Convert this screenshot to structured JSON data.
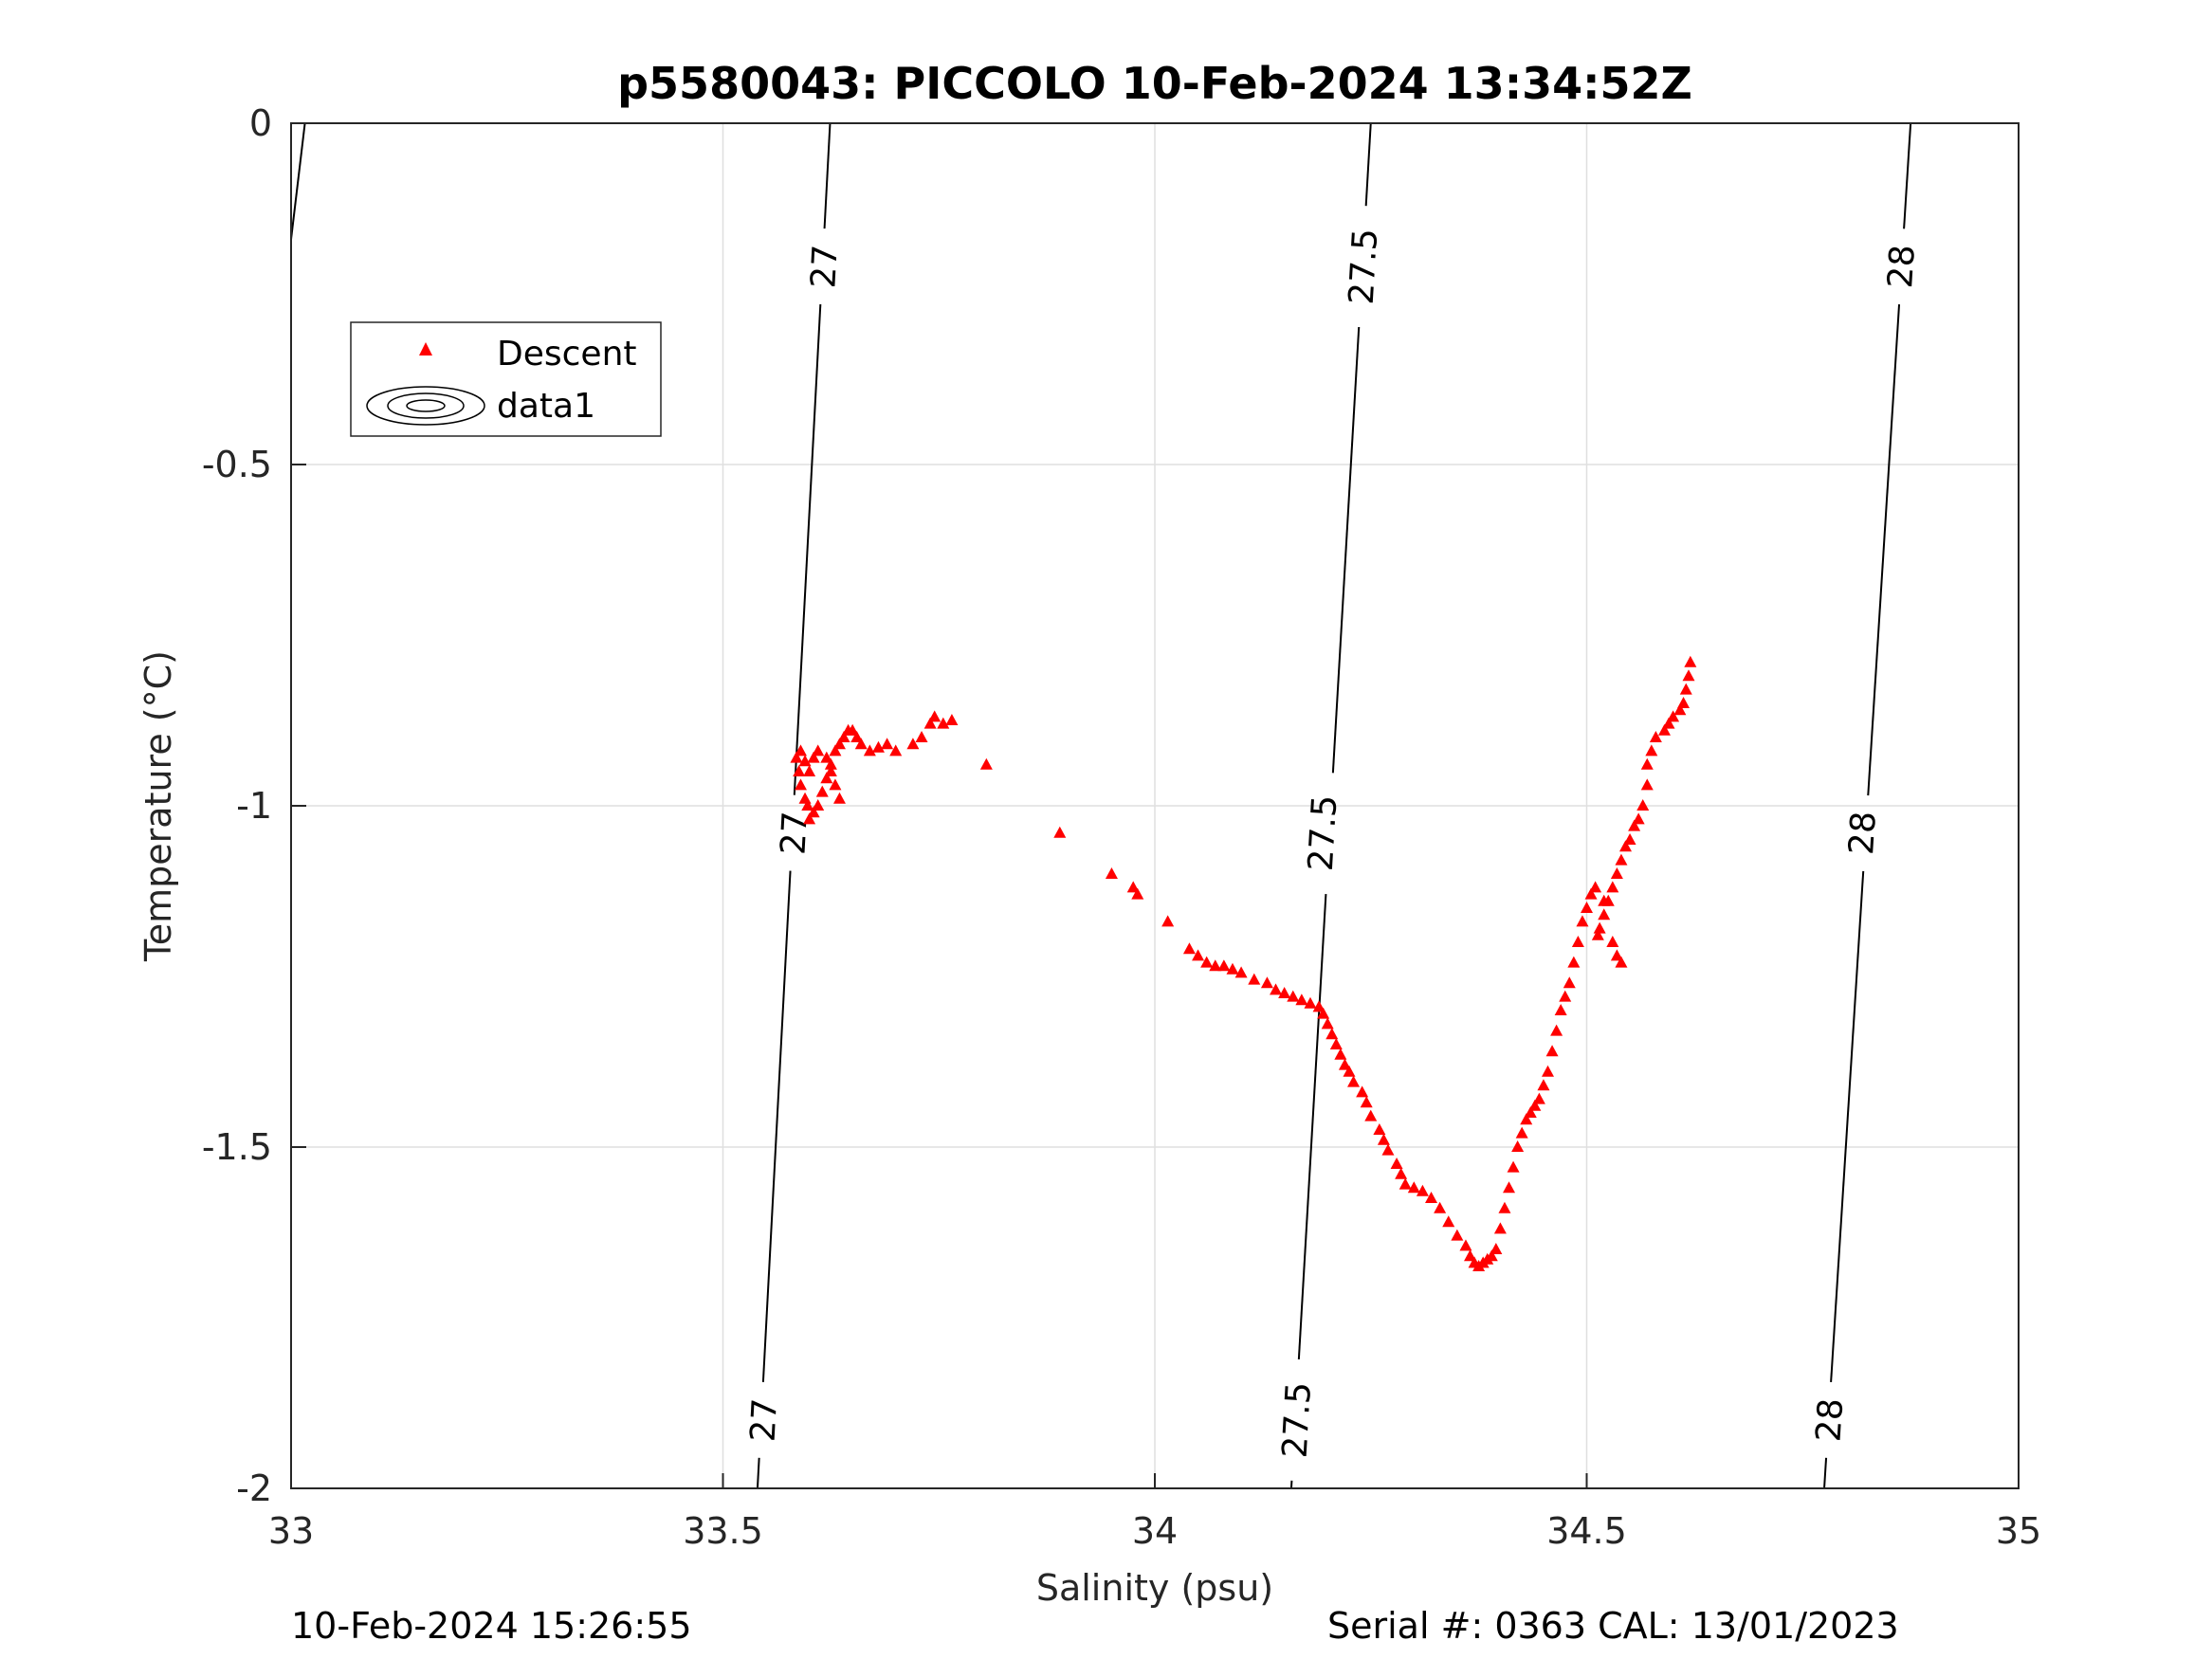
{
  "page": {
    "footer_left": "10-Feb-2024 15:26:55",
    "footer_right": "Serial #: 0363  CAL: 13/01/2023"
  },
  "chart_data": {
    "type": "scatter",
    "title": "p5580043: PICCOLO 10-Feb-2024 13:34:52Z",
    "xlabel": "Salinity (psu)",
    "ylabel": "Temperature (°C)",
    "xlim": [
      33,
      35
    ],
    "ylim": [
      -2,
      0
    ],
    "xticks": [
      33,
      33.5,
      34,
      34.5,
      35
    ],
    "xtick_labels": [
      "33",
      "33.5",
      "34",
      "34.5",
      "35"
    ],
    "yticks": [
      0,
      -0.5,
      -1,
      -1.5,
      -2
    ],
    "ytick_labels": [
      "0",
      "-0.5",
      "-1",
      "-1.5",
      "-2"
    ],
    "grid": true,
    "legend": {
      "placement": "upper-left",
      "entries": [
        {
          "label": "Descent",
          "marker": "triangle",
          "color": "#ff0000"
        },
        {
          "label": "data1",
          "marker": "contour",
          "color": "#000000"
        }
      ]
    },
    "series": [
      {
        "name": "Descent",
        "marker": "triangle",
        "color": "#ff0000",
        "points": [
          [
            34.62,
            -0.79
          ],
          [
            34.618,
            -0.81
          ],
          [
            34.615,
            -0.83
          ],
          [
            34.612,
            -0.85
          ],
          [
            34.608,
            -0.86
          ],
          [
            34.6,
            -0.87
          ],
          [
            34.595,
            -0.88
          ],
          [
            34.59,
            -0.89
          ],
          [
            34.58,
            -0.9
          ],
          [
            34.575,
            -0.92
          ],
          [
            34.57,
            -0.94
          ],
          [
            34.57,
            -0.97
          ],
          [
            34.565,
            -1.0
          ],
          [
            34.56,
            -1.02
          ],
          [
            34.555,
            -1.03
          ],
          [
            34.55,
            -1.05
          ],
          [
            34.545,
            -1.06
          ],
          [
            34.54,
            -1.08
          ],
          [
            34.535,
            -1.1
          ],
          [
            34.53,
            -1.12
          ],
          [
            34.525,
            -1.14
          ],
          [
            34.52,
            -1.16
          ],
          [
            34.515,
            -1.18
          ],
          [
            34.513,
            -1.19
          ],
          [
            34.53,
            -1.2
          ],
          [
            34.535,
            -1.22
          ],
          [
            34.54,
            -1.23
          ],
          [
            34.52,
            -1.14
          ],
          [
            34.51,
            -1.12
          ],
          [
            34.505,
            -1.13
          ],
          [
            34.5,
            -1.15
          ],
          [
            34.495,
            -1.17
          ],
          [
            34.49,
            -1.2
          ],
          [
            34.485,
            -1.23
          ],
          [
            34.48,
            -1.26
          ],
          [
            34.475,
            -1.28
          ],
          [
            34.47,
            -1.3
          ],
          [
            34.465,
            -1.33
          ],
          [
            34.46,
            -1.36
          ],
          [
            34.455,
            -1.39
          ],
          [
            34.45,
            -1.41
          ],
          [
            34.445,
            -1.43
          ],
          [
            34.44,
            -1.44
          ],
          [
            34.435,
            -1.45
          ],
          [
            34.43,
            -1.46
          ],
          [
            34.425,
            -1.48
          ],
          [
            34.42,
            -1.5
          ],
          [
            34.415,
            -1.53
          ],
          [
            34.41,
            -1.56
          ],
          [
            34.405,
            -1.59
          ],
          [
            34.4,
            -1.62
          ],
          [
            34.395,
            -1.65
          ],
          [
            34.39,
            -1.66
          ],
          [
            34.385,
            -1.665
          ],
          [
            34.38,
            -1.67
          ],
          [
            34.375,
            -1.675
          ],
          [
            34.37,
            -1.67
          ],
          [
            34.365,
            -1.66
          ],
          [
            34.36,
            -1.645
          ],
          [
            34.35,
            -1.63
          ],
          [
            34.34,
            -1.61
          ],
          [
            34.33,
            -1.59
          ],
          [
            34.32,
            -1.575
          ],
          [
            34.31,
            -1.565
          ],
          [
            34.3,
            -1.56
          ],
          [
            34.29,
            -1.555
          ],
          [
            34.285,
            -1.54
          ],
          [
            34.28,
            -1.525
          ],
          [
            34.27,
            -1.505
          ],
          [
            34.265,
            -1.49
          ],
          [
            34.26,
            -1.475
          ],
          [
            34.25,
            -1.455
          ],
          [
            34.245,
            -1.435
          ],
          [
            34.24,
            -1.42
          ],
          [
            34.23,
            -1.405
          ],
          [
            34.225,
            -1.39
          ],
          [
            34.22,
            -1.38
          ],
          [
            34.215,
            -1.365
          ],
          [
            34.21,
            -1.35
          ],
          [
            34.205,
            -1.335
          ],
          [
            34.2,
            -1.32
          ],
          [
            34.195,
            -1.305
          ],
          [
            34.19,
            -1.295
          ],
          [
            34.18,
            -1.29
          ],
          [
            34.17,
            -1.285
          ],
          [
            34.16,
            -1.28
          ],
          [
            34.15,
            -1.275
          ],
          [
            34.14,
            -1.27
          ],
          [
            34.13,
            -1.26
          ],
          [
            34.115,
            -1.255
          ],
          [
            34.1,
            -1.245
          ],
          [
            34.09,
            -1.24
          ],
          [
            34.08,
            -1.235
          ],
          [
            34.07,
            -1.235
          ],
          [
            34.06,
            -1.23
          ],
          [
            34.05,
            -1.22
          ],
          [
            34.04,
            -1.21
          ],
          [
            34.015,
            -1.17
          ],
          [
            33.98,
            -1.13
          ],
          [
            33.975,
            -1.12
          ],
          [
            33.95,
            -1.1
          ],
          [
            33.89,
            -1.04
          ],
          [
            33.805,
            -0.94
          ],
          [
            33.765,
            -0.875
          ],
          [
            33.755,
            -0.88
          ],
          [
            33.745,
            -0.87
          ],
          [
            33.74,
            -0.88
          ],
          [
            33.73,
            -0.9
          ],
          [
            33.72,
            -0.91
          ],
          [
            33.7,
            -0.92
          ],
          [
            33.69,
            -0.91
          ],
          [
            33.68,
            -0.915
          ],
          [
            33.67,
            -0.92
          ],
          [
            33.66,
            -0.91
          ],
          [
            33.655,
            -0.9
          ],
          [
            33.65,
            -0.89
          ],
          [
            33.645,
            -0.89
          ],
          [
            33.64,
            -0.9
          ],
          [
            33.635,
            -0.91
          ],
          [
            33.63,
            -0.92
          ],
          [
            33.625,
            -0.94
          ],
          [
            33.62,
            -0.96
          ],
          [
            33.615,
            -0.98
          ],
          [
            33.61,
            -1.0
          ],
          [
            33.605,
            -1.01
          ],
          [
            33.6,
            -1.02
          ],
          [
            33.598,
            -1.0
          ],
          [
            33.595,
            -0.99
          ],
          [
            33.59,
            -0.97
          ],
          [
            33.588,
            -0.95
          ],
          [
            33.585,
            -0.93
          ],
          [
            33.59,
            -0.92
          ],
          [
            33.595,
            -0.935
          ],
          [
            33.6,
            -0.95
          ],
          [
            33.605,
            -0.93
          ],
          [
            33.61,
            -0.92
          ],
          [
            33.62,
            -0.93
          ],
          [
            33.625,
            -0.95
          ],
          [
            33.63,
            -0.97
          ],
          [
            33.635,
            -0.99
          ]
        ]
      }
    ],
    "isopycnals": [
      {
        "label": "27",
        "points": [
          [
            33.624,
            0
          ],
          [
            33.54,
            -2
          ]
        ],
        "label_positions": [
          [
            33.618,
            -0.21
          ],
          [
            33.583,
            -1.04
          ],
          [
            33.548,
            -1.9
          ]
        ]
      },
      {
        "label": "27.5",
        "points": [
          [
            34.25,
            0
          ],
          [
            34.158,
            -2
          ]
        ],
        "label_positions": [
          [
            34.242,
            -0.21
          ],
          [
            34.195,
            -1.04
          ],
          [
            34.165,
            -1.9
          ]
        ]
      },
      {
        "label": "28",
        "points": [
          [
            34.875,
            0
          ],
          [
            34.775,
            -2
          ]
        ],
        "label_positions": [
          [
            34.865,
            -0.21
          ],
          [
            34.82,
            -1.04
          ],
          [
            34.782,
            -1.9
          ]
        ]
      },
      {
        "label": "",
        "points": [
          [
            33.016,
            0
          ],
          [
            33.0,
            -0.17
          ]
        ],
        "label_positions": []
      }
    ]
  }
}
